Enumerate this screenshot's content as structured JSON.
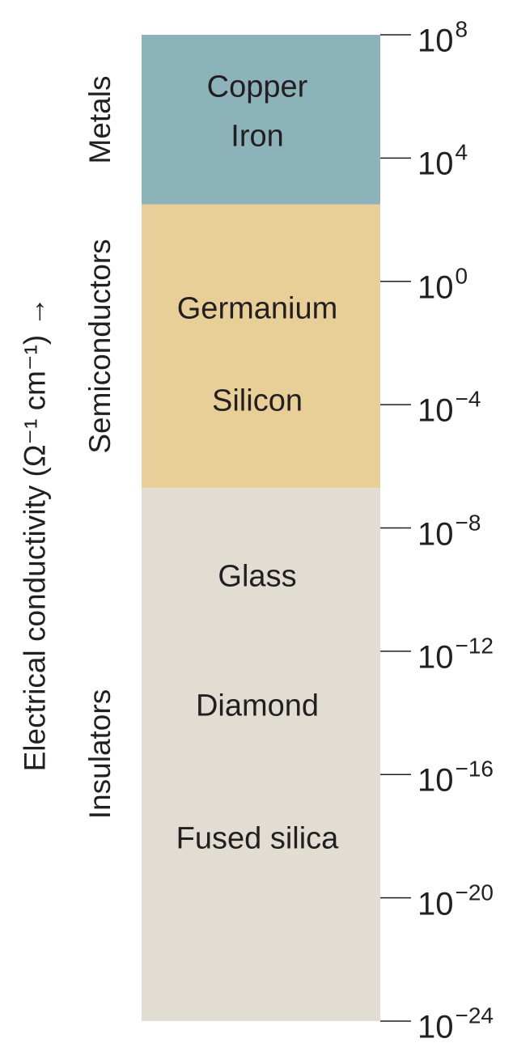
{
  "chart_data": {
    "type": "bar",
    "orientation": "vertical",
    "scale": "log10",
    "ylabel": "Electrical conductivity (Ω⁻¹ cm⁻¹) →",
    "ylim_exponent": [
      -24,
      8
    ],
    "ticks": [
      {
        "label_base": "10",
        "label_exp": "8",
        "exponent": 8
      },
      {
        "label_base": "10",
        "label_exp": "4",
        "exponent": 4
      },
      {
        "label_base": "10",
        "label_exp": "0",
        "exponent": 0
      },
      {
        "label_base": "10",
        "label_exp": "−4",
        "exponent": -4
      },
      {
        "label_base": "10",
        "label_exp": "−8",
        "exponent": -8
      },
      {
        "label_base": "10",
        "label_exp": "−12",
        "exponent": -12
      },
      {
        "label_base": "10",
        "label_exp": "−16",
        "exponent": -16
      },
      {
        "label_base": "10",
        "label_exp": "−20",
        "exponent": -20
      },
      {
        "label_base": "10",
        "label_exp": "−24",
        "exponent": -24
      }
    ],
    "categories": [
      {
        "name": "Metals",
        "range_exponent": [
          2.5,
          8
        ],
        "color": "#8cb3ba"
      },
      {
        "name": "Semiconductors",
        "range_exponent": [
          -6.7,
          2.5
        ],
        "color": "#e8cf98"
      },
      {
        "name": "Insulators",
        "range_exponent": [
          -24,
          -6.7
        ],
        "color": "#e1ddd3"
      }
    ],
    "materials": [
      {
        "name": "Copper",
        "exponent": 6.3
      },
      {
        "name": "Iron",
        "exponent": 4.7
      },
      {
        "name": "Germanium",
        "exponent": -0.9
      },
      {
        "name": "Silicon",
        "exponent": -3.9
      },
      {
        "name": "Glass",
        "exponent": -9.6
      },
      {
        "name": "Diamond",
        "exponent": -13.8
      },
      {
        "name": "Fused silica",
        "exponent": -18.1
      }
    ]
  }
}
